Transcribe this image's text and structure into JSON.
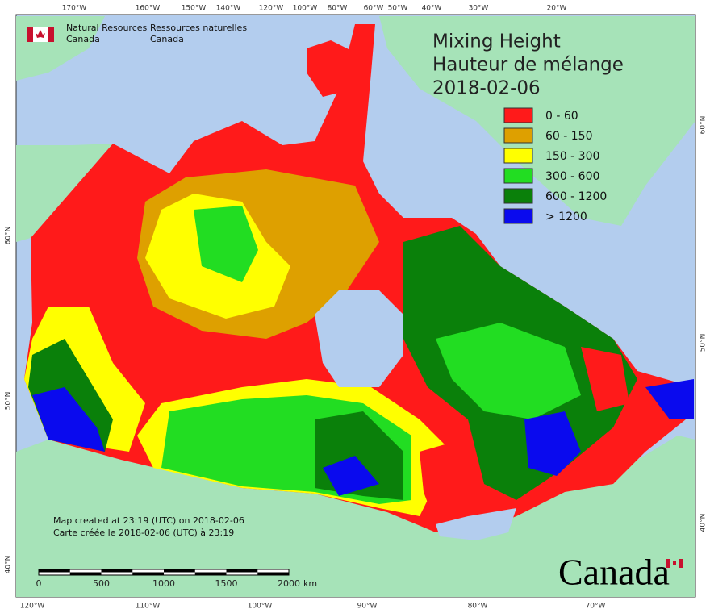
{
  "header": {
    "agency_en": "Natural Resources",
    "agency_en_2": "Canada",
    "agency_fr": "Ressources naturelles",
    "agency_fr_2": "Canada"
  },
  "title": {
    "line1": "Mixing Height",
    "line2": "Hauteur de mélange",
    "date": "2018-02-06"
  },
  "legend": {
    "items": [
      {
        "label": "0 - 60",
        "color": "#ff1a1a"
      },
      {
        "label": "60 - 150",
        "color": "#dea000"
      },
      {
        "label": "150 - 300",
        "color": "#ffff00"
      },
      {
        "label": "300 - 600",
        "color": "#22dd22"
      },
      {
        "label": "600 - 1200",
        "color": "#0a800a"
      },
      {
        "label": "> 1200",
        "color": "#0a0aee"
      }
    ]
  },
  "graticule": {
    "top": [
      "170°W",
      "160°W",
      "150°W",
      "140°W",
      "120°W",
      "100°W",
      "80°W",
      "60°W",
      "50°W",
      "40°W",
      "30°W",
      "20°W"
    ],
    "bottom": [
      "120°W",
      "110°W",
      "100°W",
      "90°W",
      "80°W",
      "70°W"
    ],
    "left": [
      "60°N",
      "50°N",
      "40°N"
    ],
    "right": [
      "60°N",
      "50°N",
      "40°N"
    ]
  },
  "credits": {
    "line1": "Map created at 23:19 (UTC) on 2018-02-06",
    "line2": "Carte créée le 2018-02-06 (UTC) à 23:19"
  },
  "scale_bar": {
    "labels": [
      0,
      500,
      1000,
      1500,
      2000
    ],
    "unit": "km"
  },
  "wordmark": "Canada"
}
